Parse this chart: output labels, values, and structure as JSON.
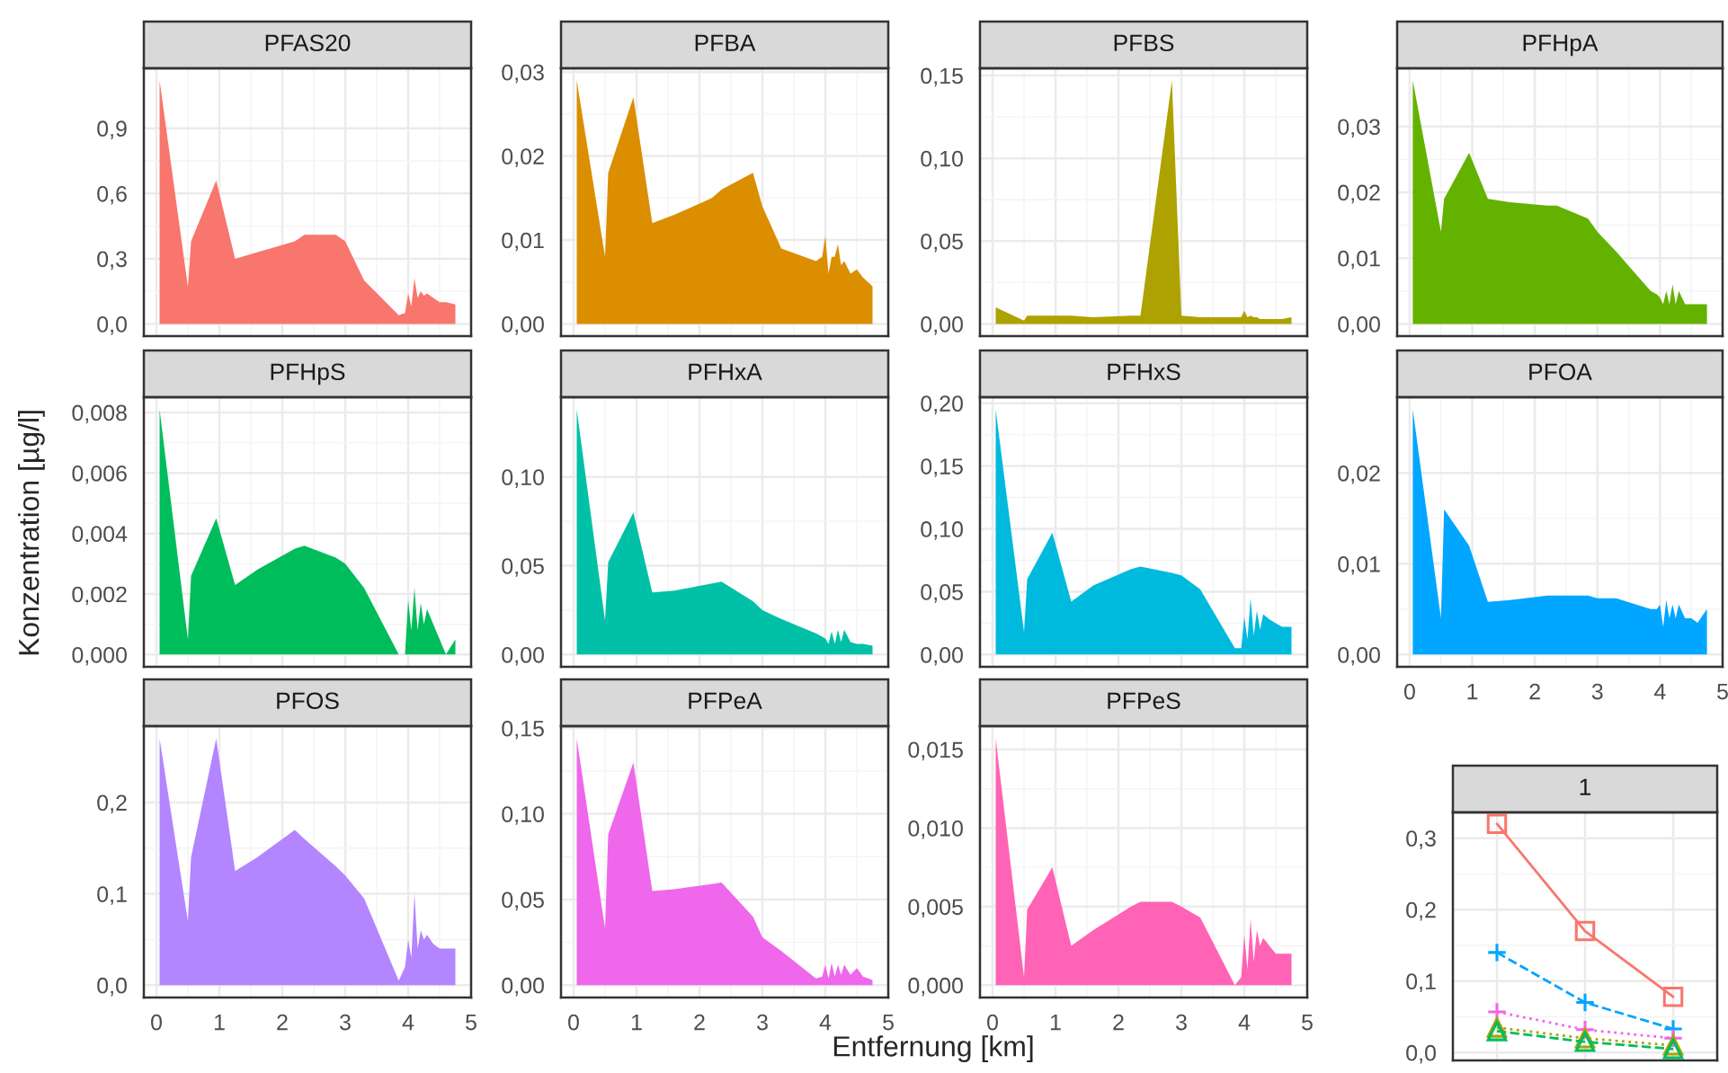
{
  "chart_data": [
    {
      "type": "area",
      "title": "PFAS20",
      "tick_labels": "y",
      "grid": true,
      "color": "#F8766D",
      "x": [
        0.05,
        0.5,
        0.55,
        0.95,
        1.25,
        1.6,
        2.2,
        2.35,
        2.85,
        3.0,
        3.3,
        3.85,
        3.95,
        4.0,
        4.05,
        4.1,
        4.15,
        4.2,
        4.25,
        4.3,
        4.4,
        4.5,
        4.6,
        4.75
      ],
      "values": [
        1.12,
        0.17,
        0.38,
        0.66,
        0.3,
        0.33,
        0.38,
        0.41,
        0.41,
        0.38,
        0.2,
        0.04,
        0.05,
        0.14,
        0.08,
        0.21,
        0.12,
        0.15,
        0.13,
        0.14,
        0.12,
        0.1,
        0.1,
        0.09
      ],
      "xlim": [
        -0.2,
        5.0
      ],
      "xticks": [
        0,
        1,
        2,
        3,
        4,
        5
      ],
      "ylim": [
        -0.056,
        1.176
      ],
      "yticks": [
        {
          "value": 0,
          "label": "0,0"
        },
        {
          "value": 0.3,
          "label": "0,3"
        },
        {
          "value": 0.6,
          "label": "0,6"
        },
        {
          "value": 0.9,
          "label": "0,9"
        }
      ]
    },
    {
      "type": "area",
      "title": "PFBA",
      "tick_labels": "y",
      "grid": true,
      "color": "#DB8E00",
      "x": [
        0.05,
        0.5,
        0.55,
        0.95,
        1.25,
        1.6,
        2.2,
        2.35,
        2.85,
        3.0,
        3.3,
        3.85,
        3.95,
        4.0,
        4.05,
        4.1,
        4.15,
        4.2,
        4.25,
        4.3,
        4.4,
        4.5,
        4.6,
        4.75
      ],
      "values": [
        0.029,
        0.008,
        0.018,
        0.027,
        0.012,
        0.013,
        0.015,
        0.016,
        0.018,
        0.014,
        0.009,
        0.0075,
        0.008,
        0.0105,
        0.006,
        0.008,
        0.008,
        0.0095,
        0.007,
        0.0075,
        0.006,
        0.0065,
        0.0055,
        0.0045
      ],
      "xlim": [
        -0.2,
        5.0
      ],
      "xticks": [
        0,
        1,
        2,
        3,
        4,
        5
      ],
      "ylim": [
        -0.00145,
        0.03045
      ],
      "yticks": [
        {
          "value": 0,
          "label": "0,00"
        },
        {
          "value": 0.01,
          "label": "0,01"
        },
        {
          "value": 0.02,
          "label": "0,02"
        },
        {
          "value": 0.03,
          "label": "0,03"
        }
      ]
    },
    {
      "type": "area",
      "title": "PFBS",
      "tick_labels": "y",
      "grid": true,
      "color": "#AEA200",
      "x": [
        0.05,
        0.5,
        0.55,
        0.95,
        1.25,
        1.6,
        2.2,
        2.35,
        2.85,
        3.0,
        3.3,
        3.85,
        3.95,
        4.0,
        4.05,
        4.1,
        4.15,
        4.2,
        4.25,
        4.3,
        4.4,
        4.5,
        4.6,
        4.75
      ],
      "values": [
        0.01,
        0.002,
        0.005,
        0.005,
        0.005,
        0.004,
        0.005,
        0.005,
        0.147,
        0.005,
        0.004,
        0.004,
        0.004,
        0.008,
        0.004,
        0.005,
        0.004,
        0.004,
        0.003,
        0.003,
        0.003,
        0.003,
        0.003,
        0.004
      ],
      "xlim": [
        -0.2,
        5.0
      ],
      "xticks": [
        0,
        1,
        2,
        3,
        4,
        5
      ],
      "ylim": [
        -0.00735,
        0.15435
      ],
      "yticks": [
        {
          "value": 0,
          "label": "0,00"
        },
        {
          "value": 0.05,
          "label": "0,05"
        },
        {
          "value": 0.1,
          "label": "0,10"
        },
        {
          "value": 0.15,
          "label": "0,15"
        }
      ]
    },
    {
      "type": "area",
      "title": "PFHpA",
      "tick_labels": "y",
      "grid": true,
      "color": "#64B200",
      "x": [
        0.05,
        0.5,
        0.55,
        0.95,
        1.25,
        1.6,
        2.2,
        2.35,
        2.85,
        3.0,
        3.3,
        3.85,
        3.95,
        4.0,
        4.05,
        4.1,
        4.15,
        4.2,
        4.25,
        4.3,
        4.4,
        4.5,
        4.6,
        4.75
      ],
      "values": [
        0.037,
        0.014,
        0.019,
        0.026,
        0.019,
        0.0185,
        0.018,
        0.018,
        0.016,
        0.014,
        0.011,
        0.005,
        0.0045,
        0.004,
        0.003,
        0.005,
        0.003,
        0.006,
        0.003,
        0.005,
        0.003,
        0.003,
        0.003,
        0.003
      ],
      "xlim": [
        -0.2,
        5.0
      ],
      "xticks": [
        0,
        1,
        2,
        3,
        4,
        5
      ],
      "ylim": [
        -0.00185,
        0.03885
      ],
      "yticks": [
        {
          "value": 0,
          "label": "0,00"
        },
        {
          "value": 0.01,
          "label": "0,01"
        },
        {
          "value": 0.02,
          "label": "0,02"
        },
        {
          "value": 0.03,
          "label": "0,03"
        }
      ]
    },
    {
      "type": "area",
      "title": "PFHpS",
      "ylabel": "Konzentration [µg/l]",
      "tick_labels": "y",
      "grid": true,
      "color": "#00BD5C",
      "x": [
        0.05,
        0.5,
        0.55,
        0.95,
        1.25,
        1.6,
        2.2,
        2.35,
        2.85,
        3.0,
        3.3,
        3.85,
        3.95,
        4.0,
        4.05,
        4.1,
        4.15,
        4.2,
        4.25,
        4.3,
        4.4,
        4.5,
        4.6,
        4.75
      ],
      "values": [
        0.0081,
        0.0005,
        0.0026,
        0.0045,
        0.0023,
        0.0028,
        0.0035,
        0.0036,
        0.0032,
        0.003,
        0.0022,
        0.0,
        0.0,
        0.0018,
        0.0008,
        0.0022,
        0.0008,
        0.0017,
        0.001,
        0.0015,
        0.001,
        0.0005,
        0.0,
        0.0005
      ],
      "xlim": [
        -0.2,
        5.0
      ],
      "xticks": [
        0,
        1,
        2,
        3,
        4,
        5
      ],
      "ylim": [
        -0.000405,
        0.008505
      ],
      "yticks": [
        {
          "value": 0,
          "label": "0,000"
        },
        {
          "value": 0.002,
          "label": "0,002"
        },
        {
          "value": 0.004,
          "label": "0,004"
        },
        {
          "value": 0.006,
          "label": "0,006"
        },
        {
          "value": 0.008,
          "label": "0,008"
        }
      ]
    },
    {
      "type": "area",
      "title": "PFHxA",
      "tick_labels": "y",
      "grid": true,
      "color": "#00C1A7",
      "x": [
        0.05,
        0.5,
        0.55,
        0.95,
        1.25,
        1.6,
        2.2,
        2.35,
        2.85,
        3.0,
        3.3,
        3.85,
        3.95,
        4.0,
        4.05,
        4.1,
        4.15,
        4.2,
        4.25,
        4.3,
        4.4,
        4.5,
        4.6,
        4.75
      ],
      "values": [
        0.138,
        0.019,
        0.052,
        0.08,
        0.035,
        0.036,
        0.04,
        0.041,
        0.03,
        0.025,
        0.02,
        0.012,
        0.01,
        0.009,
        0.006,
        0.013,
        0.006,
        0.014,
        0.007,
        0.014,
        0.007,
        0.006,
        0.006,
        0.005
      ],
      "xlim": [
        -0.2,
        5.0
      ],
      "xticks": [
        0,
        1,
        2,
        3,
        4,
        5
      ],
      "ylim": [
        -0.0069,
        0.1449
      ],
      "yticks": [
        {
          "value": 0,
          "label": "0,00"
        },
        {
          "value": 0.05,
          "label": "0,05"
        },
        {
          "value": 0.1,
          "label": "0,10"
        }
      ]
    },
    {
      "type": "area",
      "title": "PFHxS",
      "tick_labels": "y",
      "grid": true,
      "color": "#00BADE",
      "x": [
        0.05,
        0.5,
        0.55,
        0.95,
        1.25,
        1.6,
        2.2,
        2.35,
        2.85,
        3.0,
        3.3,
        3.85,
        3.95,
        4.0,
        4.05,
        4.1,
        4.15,
        4.2,
        4.25,
        4.3,
        4.4,
        4.5,
        4.6,
        4.75
      ],
      "values": [
        0.195,
        0.018,
        0.06,
        0.097,
        0.042,
        0.055,
        0.068,
        0.07,
        0.065,
        0.063,
        0.052,
        0.005,
        0.005,
        0.03,
        0.012,
        0.045,
        0.015,
        0.035,
        0.02,
        0.032,
        0.028,
        0.025,
        0.022,
        0.022
      ],
      "xlim": [
        -0.2,
        5.0
      ],
      "xticks": [
        0,
        1,
        2,
        3,
        4,
        5
      ],
      "ylim": [
        -0.00975,
        0.20475
      ],
      "yticks": [
        {
          "value": 0,
          "label": "0,00"
        },
        {
          "value": 0.05,
          "label": "0,05"
        },
        {
          "value": 0.1,
          "label": "0,10"
        },
        {
          "value": 0.15,
          "label": "0,15"
        },
        {
          "value": 0.2,
          "label": "0,20"
        }
      ]
    },
    {
      "type": "area",
      "title": "PFOA",
      "grid": true,
      "color": "#00A6FF",
      "x": [
        0.05,
        0.5,
        0.55,
        0.95,
        1.25,
        1.6,
        2.2,
        2.35,
        2.85,
        3.0,
        3.3,
        3.85,
        3.95,
        4.0,
        4.05,
        4.1,
        4.15,
        4.2,
        4.25,
        4.3,
        4.4,
        4.5,
        4.6,
        4.75
      ],
      "values": [
        0.027,
        0.004,
        0.016,
        0.012,
        0.0058,
        0.006,
        0.0065,
        0.0065,
        0.0065,
        0.0062,
        0.0062,
        0.005,
        0.005,
        0.0055,
        0.003,
        0.006,
        0.004,
        0.0055,
        0.004,
        0.0055,
        0.004,
        0.004,
        0.0035,
        0.005
      ],
      "xlim": [
        -0.2,
        5.0
      ],
      "xticks": [
        0,
        1,
        2,
        3,
        4,
        5
      ],
      "ylim": [
        -0.00135,
        0.02835
      ],
      "yticks": [
        {
          "value": 0,
          "label": "0,00"
        },
        {
          "value": 0.01,
          "label": "0,01"
        },
        {
          "value": 0.02,
          "label": "0,02"
        }
      ]
    },
    {
      "type": "area",
      "title": "PFOS",
      "grid": true,
      "color": "#B385FF",
      "x": [
        0.05,
        0.5,
        0.55,
        0.95,
        1.25,
        1.6,
        2.2,
        2.35,
        2.85,
        3.0,
        3.3,
        3.85,
        3.95,
        4.0,
        4.05,
        4.1,
        4.15,
        4.2,
        4.25,
        4.3,
        4.4,
        4.5,
        4.6,
        4.75
      ],
      "values": [
        0.27,
        0.07,
        0.14,
        0.27,
        0.125,
        0.14,
        0.17,
        0.16,
        0.13,
        0.12,
        0.095,
        0.005,
        0.02,
        0.05,
        0.03,
        0.1,
        0.04,
        0.06,
        0.05,
        0.055,
        0.045,
        0.04,
        0.04,
        0.04
      ],
      "xlim": [
        -0.2,
        5.0
      ],
      "xticks": [
        0,
        1,
        2,
        3,
        4,
        5
      ],
      "ylim": [
        -0.0135,
        0.2835
      ],
      "yticks": [
        {
          "value": 0,
          "label": "0,0"
        },
        {
          "value": 0.1,
          "label": "0,1"
        },
        {
          "value": 0.2,
          "label": "0,2"
        }
      ]
    },
    {
      "type": "area",
      "title": "PFPeA",
      "xlabel": "Entfernung [km]",
      "grid": true,
      "color": "#EF67EB",
      "x": [
        0.05,
        0.5,
        0.55,
        0.95,
        1.25,
        1.6,
        2.2,
        2.35,
        2.85,
        3.0,
        3.3,
        3.85,
        3.95,
        4.0,
        4.05,
        4.1,
        4.15,
        4.2,
        4.25,
        4.3,
        4.4,
        4.5,
        4.6,
        4.75
      ],
      "values": [
        0.144,
        0.033,
        0.088,
        0.13,
        0.055,
        0.056,
        0.059,
        0.06,
        0.04,
        0.028,
        0.02,
        0.004,
        0.005,
        0.012,
        0.004,
        0.013,
        0.005,
        0.012,
        0.006,
        0.012,
        0.006,
        0.01,
        0.005,
        0.003
      ],
      "xlim": [
        -0.2,
        5.0
      ],
      "xticks": [
        0,
        1,
        2,
        3,
        4,
        5
      ],
      "ylim": [
        -0.0072,
        0.1512
      ],
      "yticks": [
        {
          "value": 0,
          "label": "0,00"
        },
        {
          "value": 0.05,
          "label": "0,05"
        },
        {
          "value": 0.1,
          "label": "0,10"
        },
        {
          "value": 0.15,
          "label": "0,15"
        }
      ]
    },
    {
      "type": "area",
      "title": "PFPeS",
      "grid": true,
      "color": "#FF63B6",
      "x": [
        0.05,
        0.5,
        0.55,
        0.95,
        1.25,
        1.6,
        2.2,
        2.35,
        2.85,
        3.0,
        3.3,
        3.85,
        3.95,
        4.0,
        4.05,
        4.1,
        4.15,
        4.2,
        4.25,
        4.3,
        4.4,
        4.5,
        4.6,
        4.75
      ],
      "values": [
        0.0157,
        0.0005,
        0.0048,
        0.0075,
        0.0025,
        0.0035,
        0.005,
        0.0053,
        0.0053,
        0.005,
        0.0043,
        0.0,
        0.0005,
        0.0032,
        0.001,
        0.0042,
        0.0015,
        0.0035,
        0.0025,
        0.003,
        0.0025,
        0.002,
        0.002,
        0.002
      ],
      "xlim": [
        -0.2,
        5.0
      ],
      "xticks": [
        0,
        1,
        2,
        3,
        4,
        5
      ],
      "ylim": [
        -0.000785,
        0.016485
      ],
      "yticks": [
        {
          "value": 0,
          "label": "0,000"
        },
        {
          "value": 0.005,
          "label": "0,005"
        },
        {
          "value": 0.01,
          "label": "0,010"
        },
        {
          "value": 0.015,
          "label": "0,015"
        }
      ]
    },
    {
      "type": "line",
      "title": "1",
      "tick_labels": "y",
      "grid": true,
      "categories": [
        null,
        null,
        null
      ],
      "ylim": [
        -0.011,
        0.336
      ],
      "yticks": [
        {
          "value": 0,
          "label": "0,0"
        },
        {
          "value": 0.1,
          "label": "0,1"
        },
        {
          "value": 0.2,
          "label": "0,2"
        },
        {
          "value": 0.3,
          "label": "0,3"
        }
      ],
      "series": [
        {
          "color": "#F8766D",
          "marker": "square",
          "line_style": "solid",
          "values": [
            0.32,
            0.17,
            0.078
          ]
        },
        {
          "color": "#00A6FF",
          "marker": "cross",
          "line_style": "dashed",
          "values": [
            0.14,
            0.07,
            0.033
          ]
        },
        {
          "color": "#EF67EB",
          "marker": "cross",
          "line_style": "dotted",
          "values": [
            0.057,
            0.032,
            0.02
          ]
        },
        {
          "color": "#AEA200",
          "marker": "triangle",
          "line_style": "dotted",
          "values": [
            0.035,
            0.02,
            0.01
          ]
        },
        {
          "color": "#00BD5C",
          "marker": "triangle",
          "line_style": "dashed",
          "values": [
            0.03,
            0.015,
            0.005
          ]
        }
      ]
    }
  ]
}
